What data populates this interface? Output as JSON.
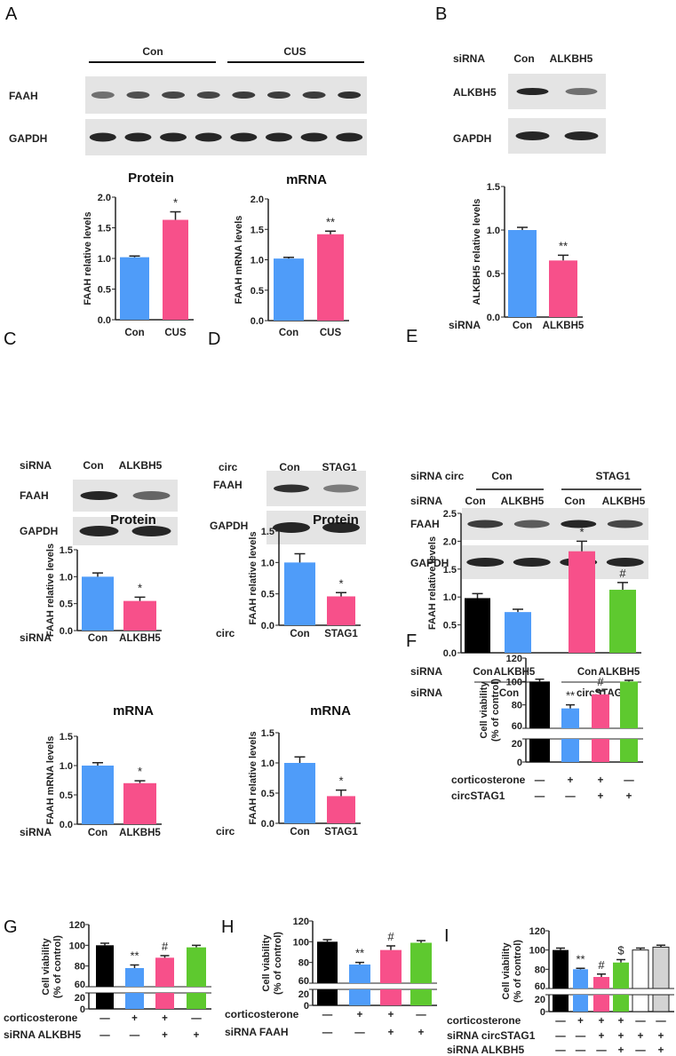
{
  "panels": {
    "A": "A",
    "B": "B",
    "C": "C",
    "D": "D",
    "E": "E",
    "F": "F",
    "G": "G",
    "H": "H",
    "I": "I"
  },
  "blots": {
    "A": {
      "groups": [
        "Con",
        "CUS"
      ],
      "rows": [
        "FAAH",
        "GAPDH"
      ]
    },
    "B": {
      "row_label": "siRNA",
      "lanes": [
        "Con",
        "ALKBH5"
      ],
      "rows": [
        "ALKBH5",
        "GAPDH"
      ]
    },
    "C": {
      "row_label": "siRNA",
      "lanes": [
        "Con",
        "ALKBH5"
      ],
      "rows": [
        "FAAH",
        "GAPDH"
      ]
    },
    "D": {
      "row_label": "circ",
      "lanes": [
        "Con",
        "STAG1"
      ],
      "rows": [
        "FAAH",
        "GAPDH"
      ]
    },
    "E": {
      "row_label_1": "siRNA circ",
      "groups": [
        "Con",
        "STAG1"
      ],
      "row_label_2": "siRNA",
      "lanes": [
        "Con",
        "ALKBH5",
        "Con",
        "ALKBH5"
      ],
      "rows": [
        "FAAH",
        "GAPDH"
      ]
    }
  },
  "chart_data": [
    {
      "id": "A1",
      "type": "bar",
      "title": "Protein",
      "ylabel": "FAAH relative levels",
      "ylim": [
        0,
        2.0
      ],
      "ticks": [
        "0.0",
        "0.5",
        "1.0",
        "1.5",
        "2.0"
      ],
      "categories": [
        "Con",
        "CUS"
      ],
      "values": [
        1.02,
        1.63
      ],
      "errors": [
        0.02,
        0.13
      ],
      "colors": [
        "#4f9cf9",
        "#f7508a"
      ],
      "significance": [
        "",
        "*"
      ]
    },
    {
      "id": "A2",
      "type": "bar",
      "title": "mRNA",
      "ylabel": "FAAH mRNA  levels",
      "ylim": [
        0,
        2.0
      ],
      "ticks": [
        "0.0",
        "0.5",
        "1.0",
        "1.5",
        "2.0"
      ],
      "categories": [
        "Con",
        "CUS"
      ],
      "values": [
        1.02,
        1.42
      ],
      "errors": [
        0.02,
        0.05
      ],
      "colors": [
        "#4f9cf9",
        "#f7508a"
      ],
      "significance": [
        "",
        "**"
      ]
    },
    {
      "id": "B",
      "type": "bar",
      "ylabel": "ALKBH5 relative levels",
      "row_label": "siRNA",
      "ylim": [
        0,
        1.5
      ],
      "ticks": [
        "0.0",
        "0.5",
        "1.0",
        "1.5"
      ],
      "categories": [
        "Con",
        "ALKBH5"
      ],
      "values": [
        1.0,
        0.65
      ],
      "errors": [
        0.03,
        0.06
      ],
      "colors": [
        "#4f9cf9",
        "#f7508a"
      ],
      "significance": [
        "",
        "**"
      ]
    },
    {
      "id": "C1",
      "type": "bar",
      "title": "Protein",
      "ylabel": "FAAH relative levels",
      "row_label": "siRNA",
      "ylim": [
        0,
        1.5
      ],
      "ticks": [
        "0.0",
        "0.5",
        "1.0",
        "1.5"
      ],
      "categories": [
        "Con",
        "ALKBH5"
      ],
      "values": [
        1.0,
        0.55
      ],
      "errors": [
        0.07,
        0.07
      ],
      "colors": [
        "#4f9cf9",
        "#f7508a"
      ],
      "significance": [
        "",
        "*"
      ]
    },
    {
      "id": "C2",
      "type": "bar",
      "title": "mRNA",
      "ylabel": "FAAH mRNA  levels",
      "row_label": "siRNA",
      "ylim": [
        0,
        1.5
      ],
      "ticks": [
        "0.0",
        "0.5",
        "1.0",
        "1.5"
      ],
      "categories": [
        "Con",
        "ALKBH5"
      ],
      "values": [
        1.0,
        0.7
      ],
      "errors": [
        0.05,
        0.04
      ],
      "colors": [
        "#4f9cf9",
        "#f7508a"
      ],
      "significance": [
        "",
        "*"
      ]
    },
    {
      "id": "D1",
      "type": "bar",
      "title": "Protein",
      "ylabel": "FAAH relative levels",
      "row_label": "circ",
      "ylim": [
        0,
        1.5
      ],
      "ticks": [
        "0.0",
        "0.5",
        "1.0",
        "1.5"
      ],
      "categories": [
        "Con",
        "STAG1"
      ],
      "values": [
        1.0,
        0.46
      ],
      "errors": [
        0.14,
        0.06
      ],
      "colors": [
        "#4f9cf9",
        "#f7508a"
      ],
      "significance": [
        "",
        "*"
      ]
    },
    {
      "id": "D2",
      "type": "bar",
      "title": "mRNA",
      "ylabel": "FAAH  relative levels",
      "row_label": "circ",
      "ylim": [
        0,
        1.5
      ],
      "ticks": [
        "0.0",
        "0.5",
        "1.0",
        "1.5"
      ],
      "categories": [
        "Con",
        "STAG1"
      ],
      "values": [
        1.0,
        0.45
      ],
      "errors": [
        0.1,
        0.1
      ],
      "colors": [
        "#4f9cf9",
        "#f7508a"
      ],
      "significance": [
        "",
        "*"
      ]
    },
    {
      "id": "E",
      "type": "bar",
      "ylabel": "FAAH relative levels",
      "ylim": [
        0,
        2.5
      ],
      "ticks": [
        "0.0",
        "0.5",
        "1.0",
        "1.5",
        "2.0",
        "2.5"
      ],
      "categories": [
        "Con",
        "ALKBH5",
        "Con",
        "ALKBH5"
      ],
      "row_label": "siRNA",
      "group_row_label": "siRNA",
      "groups": [
        "Con",
        "circSTAG1"
      ],
      "values": [
        0.98,
        0.73,
        1.82,
        1.13
      ],
      "errors": [
        0.08,
        0.05,
        0.18,
        0.13
      ],
      "colors": [
        "#000000",
        "#4f9cf9",
        "#f7508a",
        "#5ec92f"
      ],
      "significance": [
        "",
        "",
        "*",
        "#"
      ]
    },
    {
      "id": "F",
      "type": "bar",
      "broken_axis": true,
      "ylabel": "Cell viability",
      "ylabel2": "(% of control)",
      "ylim": [
        0,
        120
      ],
      "ticks": [
        "120",
        "100",
        "80",
        "60",
        "20",
        "0"
      ],
      "values": [
        100,
        77,
        89,
        100
      ],
      "errors": [
        2,
        3,
        3,
        1
      ],
      "colors": [
        "#000000",
        "#4f9cf9",
        "#f7508a",
        "#5ec92f"
      ],
      "significance": [
        "",
        "**",
        "#",
        ""
      ],
      "conditions": [
        {
          "label": "corticosterone",
          "marks": [
            "—",
            "+",
            "+",
            "—"
          ]
        },
        {
          "label": "circSTAG1",
          "marks": [
            "—",
            "—",
            "+",
            "+"
          ]
        }
      ]
    },
    {
      "id": "G",
      "type": "bar",
      "broken_axis": true,
      "ylabel": "Cell viability",
      "ylabel2": "(% of control)",
      "ylim": [
        0,
        120
      ],
      "ticks": [
        "120",
        "100",
        "80",
        "60",
        "20",
        "0"
      ],
      "values": [
        100,
        78,
        88,
        98
      ],
      "errors": [
        2,
        3,
        2,
        2
      ],
      "colors": [
        "#000000",
        "#4f9cf9",
        "#f7508a",
        "#5ec92f"
      ],
      "significance": [
        "",
        "**",
        "#",
        ""
      ],
      "conditions": [
        {
          "label": "corticosterone",
          "marks": [
            "—",
            "+",
            "+",
            "—"
          ]
        },
        {
          "label": "siRNA ALKBH5",
          "marks": [
            "—",
            "—",
            "+",
            "+"
          ]
        }
      ]
    },
    {
      "id": "H",
      "type": "bar",
      "broken_axis": true,
      "ylabel": "Cell viability",
      "ylabel2": "(% of control)",
      "ylim": [
        0,
        120
      ],
      "ticks": [
        "120",
        "100",
        "80",
        "60",
        "20",
        "0"
      ],
      "values": [
        100,
        78,
        92,
        99
      ],
      "errors": [
        2,
        2,
        4,
        2
      ],
      "colors": [
        "#000000",
        "#4f9cf9",
        "#f7508a",
        "#5ec92f"
      ],
      "significance": [
        "",
        "**",
        "#",
        ""
      ],
      "conditions": [
        {
          "label": "corticosterone",
          "marks": [
            "—",
            "+",
            "+",
            "—"
          ]
        },
        {
          "label": "siRNA  FAAH",
          "marks": [
            "—",
            "—",
            "+",
            "+"
          ]
        }
      ]
    },
    {
      "id": "I",
      "type": "bar",
      "broken_axis": true,
      "ylabel": "Cell viability",
      "ylabel2": "(% of control)",
      "ylim": [
        0,
        120
      ],
      "ticks": [
        "120",
        "100",
        "80",
        "60",
        "20",
        "0"
      ],
      "values": [
        100,
        80,
        72,
        87,
        100,
        103
      ],
      "errors": [
        2,
        1,
        3,
        3,
        2,
        2
      ],
      "colors": [
        "#000000",
        "#4f9cf9",
        "#f7508a",
        "#5ec92f",
        "#ffffff",
        "#d3d3d3"
      ],
      "significance": [
        "",
        "**",
        "#",
        "$",
        "",
        ""
      ],
      "conditions": [
        {
          "label": "corticosterone",
          "marks": [
            "—",
            "+",
            "+",
            "+",
            "—",
            "—"
          ]
        },
        {
          "label": "siRNA   circSTAG1",
          "marks": [
            "—",
            "—",
            "+",
            "+",
            "+",
            "+"
          ]
        },
        {
          "label": "siRNA   ALKBH5",
          "marks": [
            "—",
            "—",
            "—",
            "+",
            "—",
            "+"
          ]
        }
      ]
    }
  ]
}
